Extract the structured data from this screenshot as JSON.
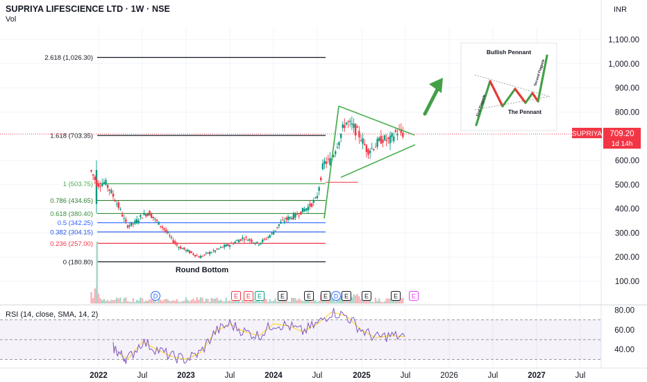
{
  "header": {
    "title": "SUPRIYA LIFESCIENCE LTD · 1W · NSE",
    "volume_label": "Vol",
    "currency": "INR"
  },
  "price_axis": {
    "ticks": [
      "1,100.00",
      "1,000.00",
      "900.00",
      "800.00",
      "600.00",
      "500.00",
      "400.00",
      "300.00",
      "200.00",
      "100.00"
    ],
    "tick_values": [
      1100,
      1000,
      900,
      800,
      600,
      500,
      400,
      300,
      200,
      100
    ]
  },
  "time_axis": {
    "labels": [
      "2022",
      "Jul",
      "2023",
      "Jul",
      "2024",
      "Jul",
      "2025",
      "Jul",
      "2026",
      "Jul",
      "2027",
      "Jul"
    ],
    "major": [
      "2022",
      "2023",
      "2024",
      "2025",
      "2027"
    ]
  },
  "last_price": {
    "symbol": "SUPRIYA",
    "value": "709.20",
    "countdown": "1d 14h",
    "color": "#f23645"
  },
  "fibonacci": [
    {
      "label": "2.618 (1,026.30)",
      "value": 1026.3,
      "color": "#131722"
    },
    {
      "label": "1.618 (703.35)",
      "value": 703.35,
      "color": "#131722"
    },
    {
      "label": "1 (503.75)",
      "value": 503.75,
      "color": "#4caf50"
    },
    {
      "label": "0.786 (434.65)",
      "value": 434.65,
      "color": "#2e7d32"
    },
    {
      "label": "0.618 (380.40)",
      "value": 380.4,
      "color": "#388e3c"
    },
    {
      "label": "0.5 (342.25)",
      "value": 342.25,
      "color": "#2962ff"
    },
    {
      "label": "0.382 (304.15)",
      "value": 304.15,
      "color": "#1e53e5"
    },
    {
      "label": "0.236 (257.00)",
      "value": 257.0,
      "color": "#f23645"
    },
    {
      "label": "0 (180.80)",
      "value": 180.8,
      "color": "#131722"
    }
  ],
  "annotations": {
    "round_bottom": "Round Bottom",
    "pennant_title": "Bullish Pennant",
    "pennant_label": "The Pennant",
    "first_flagpole": "First Flagpole",
    "second_flagpole": "Second Flagpole"
  },
  "event_markers": [
    {
      "letter": "D",
      "color": "#2962ff"
    },
    {
      "letter": "E",
      "color": "#f23645"
    },
    {
      "letter": "E",
      "color": "#f23645"
    },
    {
      "letter": "E",
      "color": "#089981"
    },
    {
      "letter": "E",
      "color": "#131722"
    },
    {
      "letter": "E",
      "color": "#131722"
    },
    {
      "letter": "E",
      "color": "#131722"
    },
    {
      "letter": "D",
      "color": "#2962ff"
    },
    {
      "letter": "E",
      "color": "#131722"
    },
    {
      "letter": "E",
      "color": "#131722"
    },
    {
      "letter": "E",
      "color": "#131722"
    },
    {
      "letter": "E",
      "color": "#e040fb"
    }
  ],
  "rsi": {
    "label": "RSI (14, close, SMA, 14, 2)",
    "ticks": [
      "80.00",
      "60.00",
      "40.00"
    ],
    "tick_values": [
      80,
      60,
      40
    ],
    "upper_band": 70,
    "mid_band": 50,
    "lower_band": 30
  },
  "chart_data": {
    "type": "candlestick",
    "title": "SUPRIYA LIFESCIENCE LTD · 1W · NSE",
    "y_scale": "linear",
    "y_range": [
      0,
      1150
    ],
    "last_close": 709.2,
    "price_path": [
      {
        "date": "2021-12",
        "close": 560
      },
      {
        "date": "2022-01",
        "close": 500
      },
      {
        "date": "2022-02",
        "close": 510
      },
      {
        "date": "2022-03",
        "close": 460
      },
      {
        "date": "2022-04",
        "close": 400
      },
      {
        "date": "2022-05",
        "close": 330
      },
      {
        "date": "2022-06",
        "close": 340
      },
      {
        "date": "2022-07",
        "close": 370
      },
      {
        "date": "2022-08",
        "close": 385
      },
      {
        "date": "2022-09",
        "close": 350
      },
      {
        "date": "2022-10",
        "close": 320
      },
      {
        "date": "2022-11",
        "close": 280
      },
      {
        "date": "2022-12",
        "close": 245
      },
      {
        "date": "2023-01",
        "close": 230
      },
      {
        "date": "2023-02",
        "close": 215
      },
      {
        "date": "2023-03",
        "close": 200
      },
      {
        "date": "2023-04",
        "close": 215
      },
      {
        "date": "2023-05",
        "close": 225
      },
      {
        "date": "2023-06",
        "close": 240
      },
      {
        "date": "2023-07",
        "close": 250
      },
      {
        "date": "2023-08",
        "close": 265
      },
      {
        "date": "2023-09",
        "close": 280
      },
      {
        "date": "2023-10",
        "close": 270
      },
      {
        "date": "2023-11",
        "close": 255
      },
      {
        "date": "2023-12",
        "close": 275
      },
      {
        "date": "2024-01",
        "close": 300
      },
      {
        "date": "2024-02",
        "close": 340
      },
      {
        "date": "2024-03",
        "close": 360
      },
      {
        "date": "2024-04",
        "close": 370
      },
      {
        "date": "2024-05",
        "close": 390
      },
      {
        "date": "2024-06",
        "close": 410
      },
      {
        "date": "2024-07",
        "close": 440
      },
      {
        "date": "2024-08",
        "close": 590
      },
      {
        "date": "2024-09",
        "close": 600
      },
      {
        "date": "2024-10",
        "close": 680
      },
      {
        "date": "2024-11",
        "close": 760
      },
      {
        "date": "2024-12",
        "close": 740
      },
      {
        "date": "2025-01",
        "close": 700
      },
      {
        "date": "2025-02",
        "close": 640
      },
      {
        "date": "2025-03",
        "close": 660
      },
      {
        "date": "2025-04",
        "close": 690
      },
      {
        "date": "2025-05",
        "close": 680
      },
      {
        "date": "2025-06",
        "close": 720
      },
      {
        "date": "2025-07",
        "close": 709.2
      }
    ],
    "rsi_path": [
      {
        "date": "2022-03",
        "value": 42
      },
      {
        "date": "2022-04",
        "value": 35
      },
      {
        "date": "2022-05",
        "value": 30
      },
      {
        "date": "2022-07",
        "value": 48
      },
      {
        "date": "2022-09",
        "value": 40
      },
      {
        "date": "2022-11",
        "value": 33
      },
      {
        "date": "2023-01",
        "value": 30
      },
      {
        "date": "2023-03",
        "value": 37
      },
      {
        "date": "2023-05",
        "value": 58
      },
      {
        "date": "2023-07",
        "value": 66
      },
      {
        "date": "2023-09",
        "value": 58
      },
      {
        "date": "2023-11",
        "value": 54
      },
      {
        "date": "2024-01",
        "value": 66
      },
      {
        "date": "2024-03",
        "value": 64
      },
      {
        "date": "2024-05",
        "value": 58
      },
      {
        "date": "2024-07",
        "value": 66
      },
      {
        "date": "2024-09",
        "value": 78
      },
      {
        "date": "2024-11",
        "value": 74
      },
      {
        "date": "2025-01",
        "value": 60
      },
      {
        "date": "2025-03",
        "value": 52
      },
      {
        "date": "2025-05",
        "value": 54
      },
      {
        "date": "2025-07",
        "value": 53
      }
    ]
  }
}
